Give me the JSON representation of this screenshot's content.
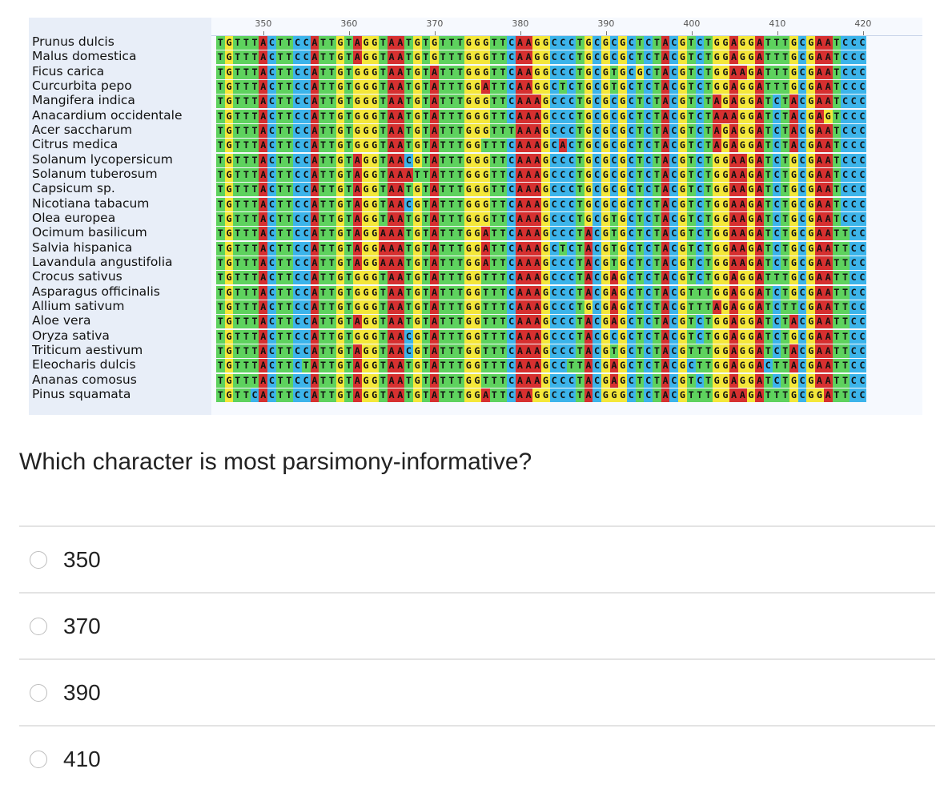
{
  "alignment": {
    "ruler_labels": [
      "350",
      "360",
      "370",
      "380",
      "390",
      "400",
      "410",
      "420"
    ],
    "species": [
      "Prunus dulcis",
      "Malus domestica",
      "Ficus carica",
      "Curcurbita pepo",
      "Mangifera indica",
      "Anacardium occidentale",
      "Acer saccharum",
      "Citrus medica",
      "Solanum lycopersicum",
      "Solanum tuberosum",
      "Capsicum sp.",
      "Nicotiana tabacum",
      "Olea europea",
      "Ocimum basilicum",
      "Salvia hispanica",
      "Lavandula angustifolia",
      "Crocus sativus",
      "Asparagus officinalis",
      "Allium sativum",
      "Aloe vera",
      "Oryza sativa",
      "Triticum aestivum",
      "Eleocharis dulcis",
      "Ananas comosus",
      "Pinus squamata"
    ],
    "sequences": [
      "TGTTTACTTCCATTGTAGGTAATGTGTTTGGGTTCAAGGCCCTGCGCGCTCTACGTCTGGAGGATTTGCGAATCCC",
      "TGTTTACTTCCATTGTAGGTAATGTGTTTGGGTTCAAGGCCCTGCGCGCTCTACGTCTGGAGGATTTGCGAATCCC",
      "TGTTTACTTCCATTGTGGGTAATGTATTTGGGTTCAAGGCCCTGCGTGCGCTACGTCTGGAAGATTTGCGAATCCC",
      "TGTTTACTTCCATTGTGGGTAATGTATTTGGATTCAAGGCTCTGCGTGCTCTACGTCTGGAGGATTTGCGAATCCC",
      "TGTTTACTTCCATTGTGGGTAATGTATTTGGGTTCAAAGCCCTGCGCGCTCTACGTCTAGAGGATCTACGAATCCC",
      "TGTTTACTTCCATTGTGGGTAATGTATTTGGGTTCAAAGCCCTGCGCGCTCTACGTCTAAAGGATCTACGAGTCCC",
      "TGTTTACTTCCATTGTGGGTAATGTATTTGGGTTTAAAGCCCTGCGCGCTCTACGTCTAGAGGATCTACGAATCCC",
      "TGTTTACTTCCATTGTGGGTAATGTATTTGGTTTCAAAGCACTGCGCGCTCTACGTCTAGAGGATCTACGAATCCC",
      "TGTTTACTTCCATTGTAGGTAACGTATTTGGGTTCAAAGCCCTGCGCGCTCTACGTCTGGAAGATCTGCGAATCCC",
      "TGTTTACTTCCATTGTAGGTAAATTATTTGGGTTCAAAGCCCTGCGCGCTCTACGTCTGGAAGATCTGCGAATCCC",
      "TGTTTACTTCCATTGTAGGTAATGTATTTGGGTTCAAAGCCCTGCGCGCTCTACGTCTGGAAGATCTGCGAATCCC",
      "TGTTTACTTCCATTGTAGGTAACGTATTTGGGTTCAAAGCCCTGCGCGCTCTACGTCTGGAAGATCTGCGAATCCC",
      "TGTTTACTTCCATTGTAGGTAATGTATTTGGGTTCAAAGCCCTGCGTGCTCTACGTCTGGAAGATCTGCGAATCCC",
      "TGTTTACTTCCATTGTAGGAAATGTATTTGGATTCAAAGCCCTACGTGCTCTACGTCTGGAAGATCTGCGAATTCC",
      "TGTTTACTTCCATTGTAGGAAATGTATTTGGATTCAAAGCTCTACGTGCTCTACGTCTGGAAGATCTGCGAATTCC",
      "TGTTTACTTCCATTGTAGGAAATGTATTTGGATTCAAAGCCCTACGTGCTCTACGTCTGGAAGATCTGCGAATTCC",
      "TGTTTACTTCCATTGTGGGTAATGTATTTGGTTTCAAAGCCCTACGAGCTCTACGTCTGGAGGATTTGCGAATTCC",
      "TGTTTACTTCCATTGTGGGTAATGTATTTGGTTTCAAAGCCCTACGAGCTCTACGTTTGGAGGATCTGCGAATTCC",
      "TGTTTACTTCCATTGTGGGTAATGTATTTGGTTTCAAAGCCCTGCGAGCTCTACGTTTAGAGGATCTTCGAATTCC",
      "TGTTTACTTCCATTGTAGGTAATGTATTTGGTTTCAAAGCCCTACGAGCTCTACGTCTGGAGGATCTACGAATTCC",
      "TGTTTACTTCCATTGTGGGTAACGTATTTGGTTTCAAAGCCCTACGCGCTCTACGTCTGGAGGATCTGCGAATTCC",
      "TGTTTACTTCCATTGTAGGTAACGTATTTGGTTTCAAAGCCCTACGTGCTCTACGTTTGGAGGATCTACGAATTCC",
      "TGTTTACTTCTATTGTAGGTAATGTATTTGGTTTCAAAGCCTTACGAGCTCTACGCTTGGAGGACTTACGAATTCC",
      "TGTTTACTTCCATTGTAGGTAATGTATTTGGTTTCAAAGCCCTACGAGCTCTACGTCTGGAGGATCTGCGAATTCC",
      "TGTTCACTTCCATTGTAGGTAATGTATTTGGATTCAAGGCCCTACGGGCTCTACGTTTGGAAGATTTGCGGATTCC"
    ]
  },
  "question": {
    "text": "Which character is most parsimony-informative?",
    "options": [
      "350",
      "370",
      "390",
      "410"
    ]
  }
}
